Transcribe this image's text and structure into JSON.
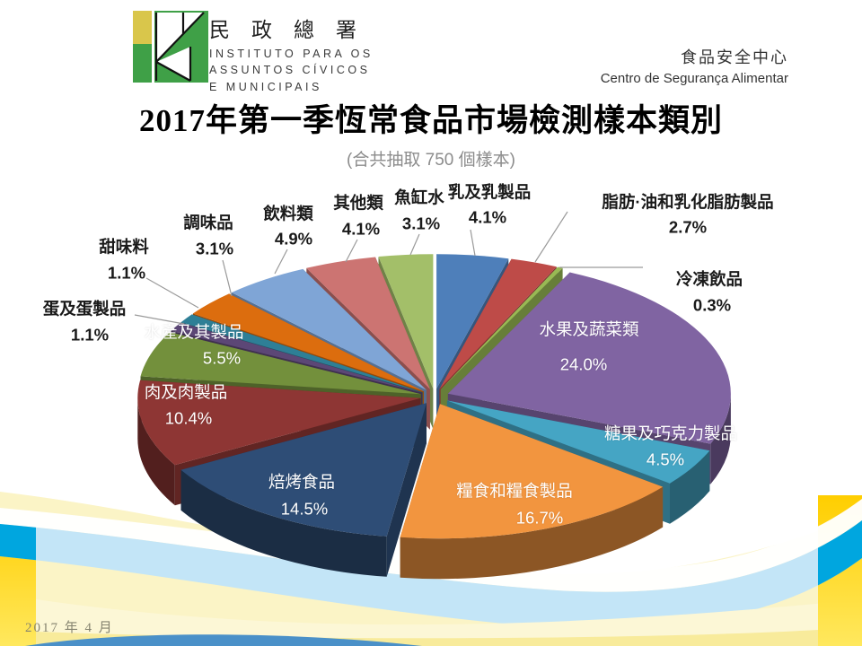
{
  "header": {
    "org_zh": "民政總署",
    "org_lines": [
      "INSTITUTO PARA OS",
      "ASSUNTOS CÍVICOS",
      "E MUNICIPAIS"
    ],
    "dept_zh": "食品安全中心",
    "dept_pt": "Centro de Segurança Alimentar"
  },
  "title": "2017年第一季恆常食品市場檢測樣本類別",
  "subtitle": "(合共抽取 750 個樣本)",
  "footer": {
    "date": "2017 年 4 月"
  },
  "chart_data": {
    "type": "pie",
    "title": "2017年第一季恆常食品市場檢測樣本類別",
    "subtitle": "(合共抽取 750 個樣本)",
    "total_samples": 750,
    "unit": "%",
    "style": "3d-exploded",
    "start_angle_deg": 0,
    "clockwise": true,
    "segments": [
      {
        "label": "乳及乳製品",
        "value": 4.1,
        "color": "#4E7FBA",
        "label_mode": "outside"
      },
      {
        "label": "脂肪·油和乳化脂肪製品",
        "value": 2.7,
        "color": "#BE4B48",
        "label_mode": "outside"
      },
      {
        "label": "冷凍飲品",
        "value": 0.3,
        "color": "#98B954",
        "label_mode": "outside"
      },
      {
        "label": "水果及蔬菜類",
        "value": 24.0,
        "color": "#8064A2",
        "label_mode": "inside"
      },
      {
        "label": "糖果及巧克力製品",
        "value": 4.5,
        "color": "#45A5C4",
        "label_mode": "inside"
      },
      {
        "label": "糧食和糧食製品",
        "value": 16.7,
        "color": "#F2953F",
        "label_mode": "inside"
      },
      {
        "label": "焙烤食品",
        "value": 14.5,
        "color": "#2E4D76",
        "label_mode": "inside"
      },
      {
        "label": "肉及肉製品",
        "value": 10.4,
        "color": "#8E3634",
        "label_mode": "inside"
      },
      {
        "label": "水產及其製品",
        "value": 5.5,
        "color": "#73903C",
        "label_mode": "inside"
      },
      {
        "label": "蛋及蛋製品",
        "value": 1.1,
        "color": "#5C4776",
        "label_mode": "outside"
      },
      {
        "label": "甜味料",
        "value": 1.1,
        "color": "#2E7F96",
        "label_mode": "outside"
      },
      {
        "label": "調味品",
        "value": 3.1,
        "color": "#DC6D0E",
        "label_mode": "outside"
      },
      {
        "label": "飲料類",
        "value": 4.9,
        "color": "#7FA5D6",
        "label_mode": "outside"
      },
      {
        "label": "其他類",
        "value": 4.1,
        "color": "#CC7472",
        "label_mode": "outside"
      },
      {
        "label": "魚缸水",
        "value": 3.1,
        "color": "#A3BF69",
        "label_mode": "outside"
      }
    ]
  },
  "background": {
    "base_yellow": "#FBF4C6",
    "ribbon_light_blue": "#C3E5F7",
    "ribbon_vivid_blue": "#00A6DF",
    "gold_band_dark": "#FFCE00",
    "gold_band_light": "#FFE85E",
    "cream_wave": "#FCF7D6",
    "bottom_yellow": "#F7E995",
    "bottom_blue_sliver": "#4A90C8",
    "logo_yellow": "#D9C64B",
    "logo_green": "#3FA047"
  }
}
